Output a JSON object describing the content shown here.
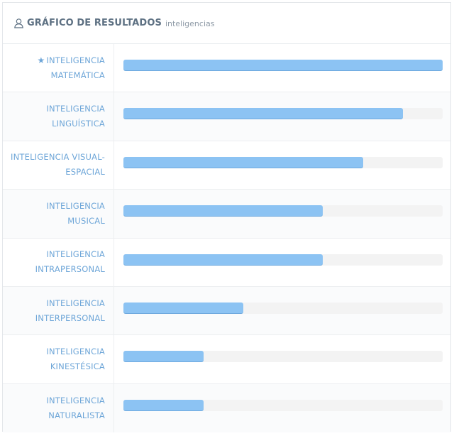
{
  "header": {
    "title": "GRÁFICO DE RESULTADOS",
    "subtitle": "inteligencias",
    "icon": "user-icon"
  },
  "colors": {
    "bar_fill": "#8cc3f3",
    "track": "#f3f3f3",
    "label": "#6ea6d8",
    "title": "#5e7183"
  },
  "rows": [
    {
      "line1": "INTELIGENCIA",
      "line2": "MATEMÁTICA",
      "top": true
    },
    {
      "line1": "INTELIGENCIA",
      "line2": "LINGUÍSTICA",
      "top": false
    },
    {
      "line1": "INTELIGENCIA VISUAL-",
      "line2": "ESPACIAL",
      "top": false
    },
    {
      "line1": "INTELIGENCIA",
      "line2": "MUSICAL",
      "top": false
    },
    {
      "line1": "INTELIGENCIA",
      "line2": "INTRAPERSONAL",
      "top": false
    },
    {
      "line1": "INTELIGENCIA",
      "line2": "INTERPERSONAL",
      "top": false
    },
    {
      "line1": "INTELIGENCIA",
      "line2": "KINESTÉSICA",
      "top": false
    },
    {
      "line1": "INTELIGENCIA",
      "line2": "NATURALISTA",
      "top": false
    }
  ],
  "chart_data": {
    "type": "bar",
    "orientation": "horizontal",
    "title": "GRÁFICO DE RESULTADOS",
    "subtitle": "inteligencias",
    "categories": [
      "INTELIGENCIA MATEMÁTICA",
      "INTELIGENCIA LINGUÍSTICA",
      "INTELIGENCIA VISUAL-ESPACIAL",
      "INTELIGENCIA MUSICAL",
      "INTELIGENCIA INTRAPERSONAL",
      "INTELIGENCIA INTERPERSONAL",
      "INTELIGENCIA KINESTÉSICA",
      "INTELIGENCIA NATURALISTA"
    ],
    "values": [
      100,
      87.5,
      75,
      62.5,
      62.5,
      37.5,
      25,
      25
    ],
    "xlim": [
      0,
      100
    ],
    "grid": false,
    "legend": "none"
  }
}
